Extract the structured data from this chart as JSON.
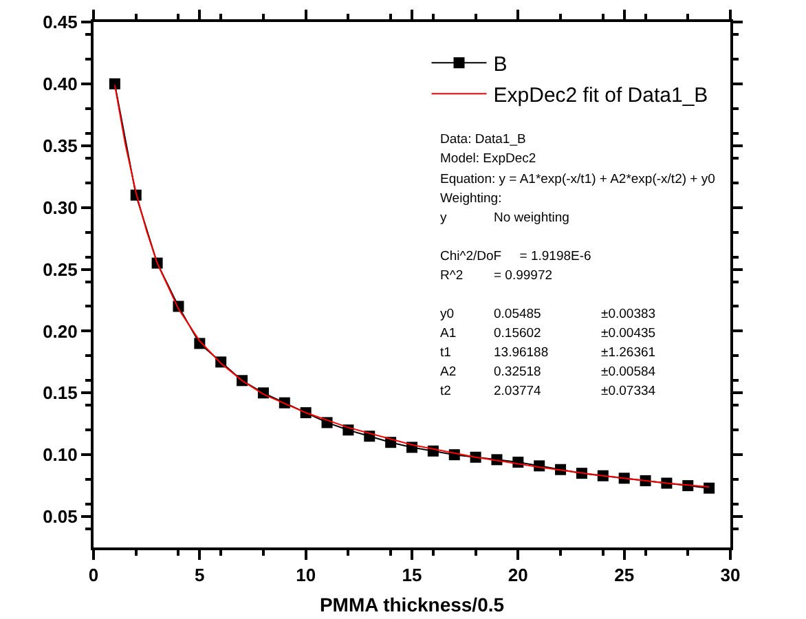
{
  "chart_data": {
    "type": "line",
    "xlabel": "PMMA thickness/0.5",
    "xlim": [
      0,
      30
    ],
    "xticks": [
      0,
      5,
      10,
      15,
      20,
      25,
      30
    ],
    "ylim": [
      0.025,
      0.45
    ],
    "yticks": [
      0.05,
      {
        "value": 0.1,
        "label": "0.10"
      },
      0.15,
      {
        "value": 0.2,
        "label": "0.20"
      },
      0.25,
      {
        "value": 0.3,
        "label": "0.30"
      },
      0.35,
      {
        "value": 0.4,
        "label": "0.40"
      },
      0.45
    ],
    "grid": false,
    "legend": "top right",
    "series": [
      {
        "name": "B",
        "color": "#000000",
        "marker": "square",
        "x": [
          1,
          2,
          3,
          4,
          5,
          6,
          7,
          8,
          9,
          10,
          11,
          12,
          13,
          14,
          15,
          16,
          17,
          18,
          19,
          20,
          21,
          22,
          23,
          24,
          25,
          26,
          27,
          28,
          29
        ],
        "values": [
          0.4,
          0.31,
          0.255,
          0.22,
          0.19,
          0.175,
          0.16,
          0.15,
          0.142,
          0.134,
          0.126,
          0.12,
          0.115,
          0.11,
          0.106,
          0.103,
          0.1,
          0.098,
          0.096,
          0.094,
          0.091,
          0.088,
          0.085,
          0.083,
          0.081,
          0.079,
          0.077,
          0.075,
          0.073
        ]
      },
      {
        "name": "ExpDec2 fit of Data1_B",
        "color": "#ff0000",
        "marker": "none",
        "x": [
          1,
          1.5,
          2,
          2.5,
          3,
          4,
          5,
          6,
          7,
          8,
          10,
          12,
          15,
          18,
          21,
          24,
          27,
          29
        ],
        "values": [
          0.399,
          0.351,
          0.312,
          0.281,
          0.255,
          0.218,
          0.192,
          0.174,
          0.16,
          0.149,
          0.134,
          0.122,
          0.108,
          0.098,
          0.09,
          0.083,
          0.077,
          0.074
        ]
      }
    ],
    "annotations": [
      "Data: Data1_B\nModel: ExpDec2\nEquation: y = A1*exp(-x/t1) + A2*exp(-x/t2) + y0\nWeighting:\ny\tNo weighting",
      "Chi^2/DoF     = 1.9198E-6\nR^2\t= 0.99972",
      "y0\t0.05485\t±0.00383\nA1\t0.15602\t±0.00435\nt1\t13.96188\t±1.26361\nA2\t0.32518\t±0.00584\nt2\t2.03774\t±0.07334"
    ]
  }
}
